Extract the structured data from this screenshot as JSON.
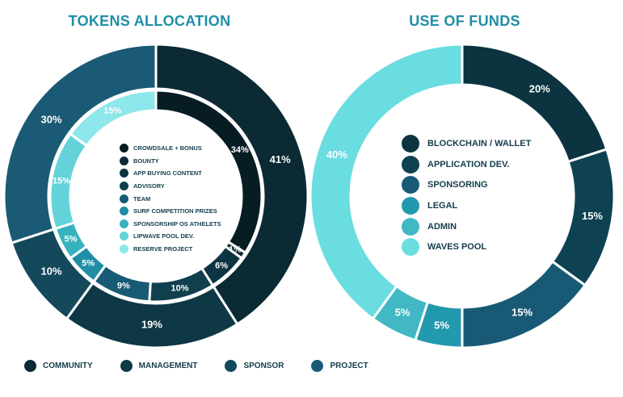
{
  "chart_data": [
    {
      "type": "pie",
      "title": "TOKENS ALLOCATION",
      "outer_ring": {
        "values": [
          41,
          19,
          10,
          30
        ],
        "labels": [
          "41%",
          "19%",
          "10%",
          "30%"
        ],
        "colors": [
          "#0b2a33",
          "#0e3845",
          "#14495b",
          "#1b5a75"
        ]
      },
      "inner_ring": {
        "values": [
          34,
          1,
          6,
          10,
          9,
          5,
          5,
          15,
          15
        ],
        "labels": [
          "34%",
          "1%",
          "6%",
          "10%",
          "9%",
          "5%",
          "5%",
          "15%",
          "15%"
        ],
        "colors": [
          "#081c24",
          "#0b2a33",
          "#0d3441",
          "#103f4e",
          "#175b74",
          "#1f8ea4",
          "#35b3bf",
          "#63d3d9",
          "#8ee7ea"
        ]
      },
      "legend": [
        {
          "name": "CROWDSALE + BONUS",
          "color": "#081c24"
        },
        {
          "name": "BOUNTY",
          "color": "#0b2a33"
        },
        {
          "name": "APP BUYING CONTENT",
          "color": "#0d3441"
        },
        {
          "name": "ADVISORY",
          "color": "#103f4e"
        },
        {
          "name": "TEAM",
          "color": "#175b74"
        },
        {
          "name": "SURF COMPETITION PRIZES",
          "color": "#1f8ea4"
        },
        {
          "name": "SPONSORSHIP OS ATHELETS",
          "color": "#35b3bf"
        },
        {
          "name": "LIPWAVE POOL DEV.",
          "color": "#63d3d9"
        },
        {
          "name": "RESERVE PROJECT",
          "color": "#8ee7ea"
        }
      ],
      "outer_legend": [
        {
          "name": "COMMUNITY",
          "color": "#0b2a33"
        },
        {
          "name": "MANAGEMENT",
          "color": "#0e3845"
        },
        {
          "name": "SPONSOR",
          "color": "#14495b"
        },
        {
          "name": "PROJECT",
          "color": "#1b5a75"
        }
      ]
    },
    {
      "type": "pie",
      "title": "USE OF FUNDS",
      "values": [
        20,
        15,
        15,
        5,
        5,
        40
      ],
      "labels": [
        "20%",
        "15%",
        "15%",
        "5%",
        "5%",
        "40%"
      ],
      "colors": [
        "#0b3340",
        "#0e4252",
        "#185a76",
        "#2399ad",
        "#41b8c4",
        "#6adde1"
      ],
      "legend": [
        {
          "name": "BLOCKCHAIN / WALLET",
          "color": "#0b3340"
        },
        {
          "name": "APPLICATION DEV.",
          "color": "#0e4252"
        },
        {
          "name": "SPONSORING",
          "color": "#185a76"
        },
        {
          "name": "LEGAL",
          "color": "#2399ad"
        },
        {
          "name": "ADMIN",
          "color": "#41b8c4"
        },
        {
          "name": "WAVES POOL",
          "color": "#6adde1"
        }
      ]
    }
  ]
}
